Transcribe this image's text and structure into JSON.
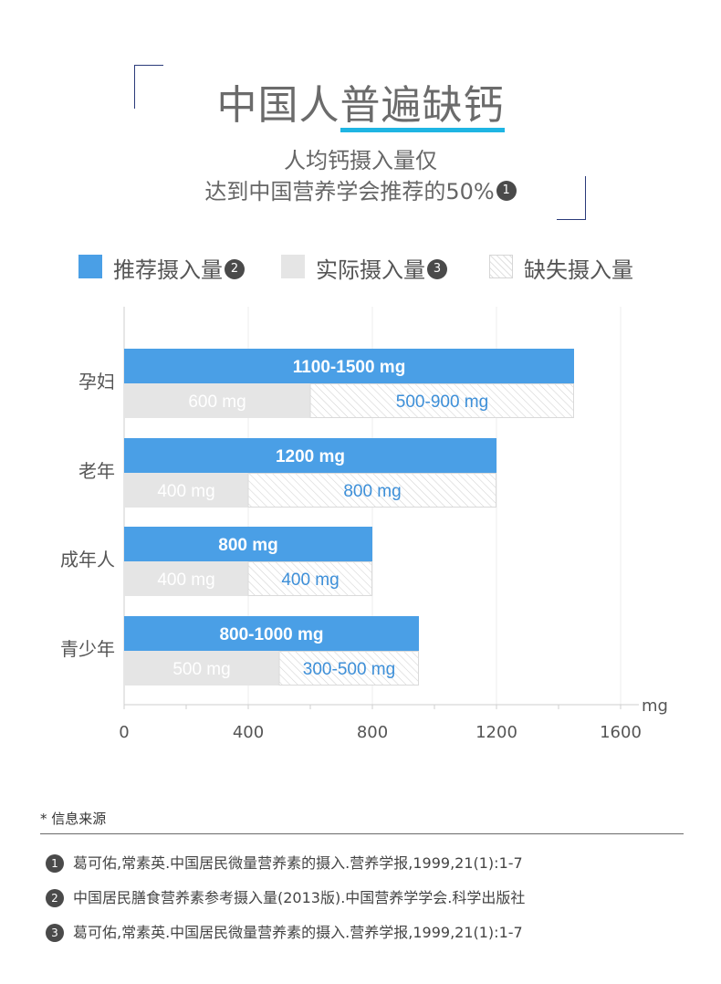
{
  "header": {
    "title_plain": "中国人",
    "title_highlight": "普遍缺钙",
    "subtitle_line1": "人均钙摄入量仅",
    "subtitle_line2": "达到中国营养学会推荐的50%",
    "subtitle_ref": "1"
  },
  "legend": [
    {
      "label": "推荐摄入量",
      "ref": "2",
      "color": "#4a9fe6"
    },
    {
      "label": "实际摄入量",
      "ref": "3",
      "color": "#e5e5e5"
    },
    {
      "label": "缺失摄入量",
      "ref": "",
      "color": "hatch"
    }
  ],
  "chart_data": {
    "type": "bar",
    "orientation": "horizontal",
    "unit": "mg",
    "xlim": [
      0,
      1600
    ],
    "x_ticks": [
      "0",
      "400",
      "800",
      "1200",
      "1600"
    ],
    "categories": [
      "孕妇",
      "老年",
      "成年人",
      "青少年"
    ],
    "series": [
      {
        "name": "推荐摄入量",
        "values": [
          1450,
          1200,
          800,
          950
        ],
        "labels": [
          "1100-1500 mg",
          "1200 mg",
          "800 mg",
          "800-1000 mg"
        ],
        "color": "#4a9fe6"
      },
      {
        "name": "实际摄入量",
        "values": [
          600,
          400,
          400,
          500
        ],
        "labels": [
          "600 mg",
          "400 mg",
          "400 mg",
          "500 mg"
        ],
        "color": "#e5e5e5"
      },
      {
        "name": "缺失摄入量",
        "values": [
          850,
          800,
          400,
          450
        ],
        "labels": [
          "500-900 mg",
          "800 mg",
          "400 mg",
          "300-500 mg"
        ],
        "color": "hatch"
      }
    ]
  },
  "sources": {
    "heading": "* 信息来源",
    "items": [
      {
        "n": "1",
        "text": "葛可佑,常素英.中国居民微量营养素的摄入.营养学报,1999,21(1):1-7"
      },
      {
        "n": "2",
        "text": "中国居民膳食营养素参考摄入量(2013版).中国营养学学会.科学出版社"
      },
      {
        "n": "3",
        "text": "葛可佑,常素英.中国居民微量营养素的摄入.营养学报,1999,21(1):1-7"
      }
    ]
  },
  "colors": {
    "accent": "#1fb5e3",
    "blue": "#4a9fe6",
    "gray": "#e5e5e5",
    "frame": "#2a3a7a"
  }
}
